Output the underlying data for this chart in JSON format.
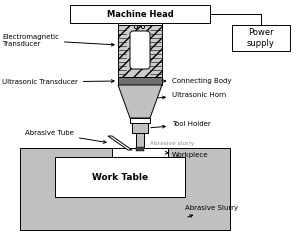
{
  "bg_color": "#ffffff",
  "gray_fill": "#c0c0c0",
  "hatch_fill": "#cccccc",
  "dark_gray": "#707070",
  "labels": {
    "machine_head": "Machine Head",
    "power_supply": "Power\nsupply",
    "electromagnetic": "Electromagnetic\nTransducer",
    "ultrasonic_transducer": "Ultrasonic Transducer",
    "connecting_body": "Connecting Body",
    "ultrasonic_horn": "Ultrasonic Horn",
    "abrasive_tube": "Abrasive Tube",
    "tool_holder": "Tool Holder",
    "abrasive_slurry_small": "Abrasive slurry",
    "workpiece": "Workpiece",
    "work_table": "Work Table",
    "abrasive_slurry_large": "Abrasive Slurry"
  }
}
